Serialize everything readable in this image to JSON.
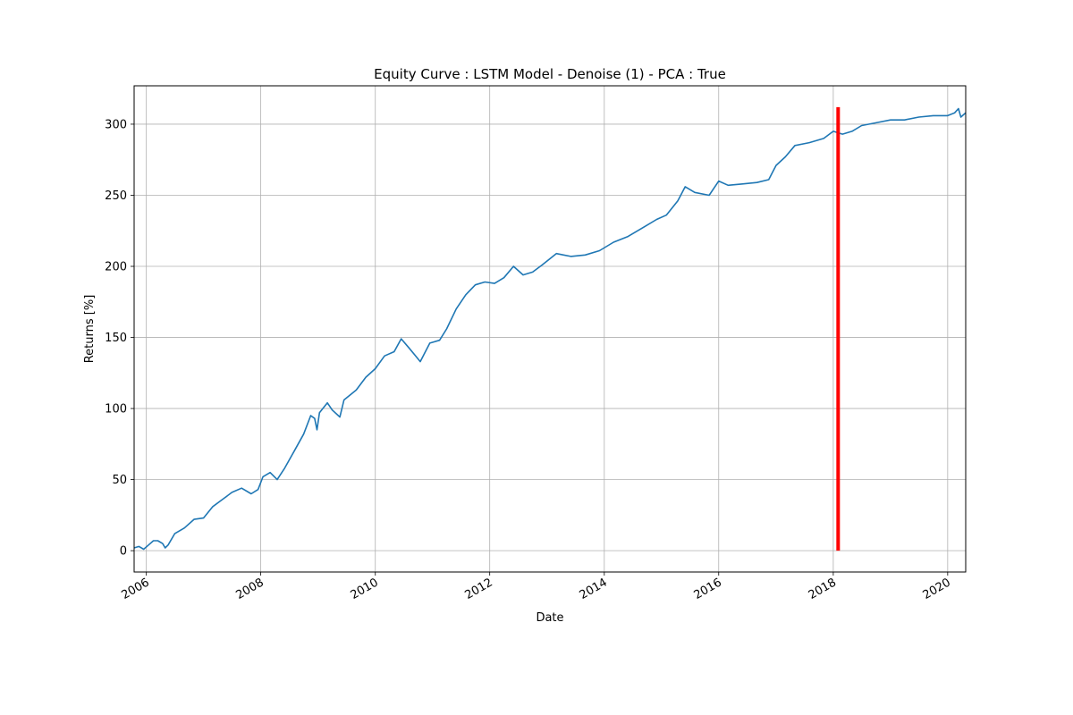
{
  "chart_data": {
    "type": "line",
    "title": "Equity Curve : LSTM Model - Denoise (1) - PCA : True",
    "xlabel": "Date",
    "ylabel": "Returns [%]",
    "xlim": [
      "2005-10-15",
      "2020-04-25"
    ],
    "ylim": [
      -15,
      327
    ],
    "x_ticks": [
      "2006",
      "2008",
      "2010",
      "2012",
      "2014",
      "2016",
      "2018",
      "2020"
    ],
    "y_ticks": [
      0,
      50,
      100,
      150,
      200,
      250,
      300
    ],
    "grid": true,
    "series": [
      {
        "color": "#1f77b4",
        "points": [
          [
            "2005-10-15",
            2
          ],
          [
            "2005-11-15",
            3
          ],
          [
            "2005-12-15",
            1
          ],
          [
            "2006-01-15",
            4
          ],
          [
            "2006-02-15",
            7
          ],
          [
            "2006-03-15",
            7
          ],
          [
            "2006-04-15",
            5
          ],
          [
            "2006-05-01",
            2
          ],
          [
            "2006-05-20",
            4
          ],
          [
            "2006-07-01",
            12
          ],
          [
            "2006-09-01",
            16
          ],
          [
            "2006-11-01",
            22
          ],
          [
            "2007-01-01",
            23
          ],
          [
            "2007-03-01",
            31
          ],
          [
            "2007-05-01",
            36
          ],
          [
            "2007-07-01",
            41
          ],
          [
            "2007-09-01",
            44
          ],
          [
            "2007-11-01",
            40
          ],
          [
            "2007-12-15",
            43
          ],
          [
            "2008-01-15",
            52
          ],
          [
            "2008-03-01",
            55
          ],
          [
            "2008-04-15",
            50
          ],
          [
            "2008-06-01",
            58
          ],
          [
            "2008-08-01",
            70
          ],
          [
            "2008-10-01",
            82
          ],
          [
            "2008-11-15",
            95
          ],
          [
            "2008-12-10",
            93
          ],
          [
            "2008-12-25",
            85
          ],
          [
            "2009-01-10",
            97
          ],
          [
            "2009-03-01",
            104
          ],
          [
            "2009-04-01",
            99
          ],
          [
            "2009-05-20",
            94
          ],
          [
            "2009-06-15",
            106
          ],
          [
            "2009-09-01",
            113
          ],
          [
            "2009-11-01",
            122
          ],
          [
            "2010-01-01",
            128
          ],
          [
            "2010-03-01",
            137
          ],
          [
            "2010-05-01",
            140
          ],
          [
            "2010-06-15",
            149
          ],
          [
            "2010-08-01",
            143
          ],
          [
            "2010-09-15",
            137
          ],
          [
            "2010-10-15",
            133
          ],
          [
            "2010-12-15",
            146
          ],
          [
            "2011-02-15",
            148
          ],
          [
            "2011-04-01",
            156
          ],
          [
            "2011-06-01",
            170
          ],
          [
            "2011-08-01",
            180
          ],
          [
            "2011-10-01",
            187
          ],
          [
            "2011-12-01",
            189
          ],
          [
            "2012-02-01",
            188
          ],
          [
            "2012-04-01",
            192
          ],
          [
            "2012-06-01",
            200
          ],
          [
            "2012-08-01",
            194
          ],
          [
            "2012-10-01",
            196
          ],
          [
            "2012-12-01",
            201
          ],
          [
            "2013-03-01",
            209
          ],
          [
            "2013-06-01",
            207
          ],
          [
            "2013-09-01",
            208
          ],
          [
            "2013-12-01",
            211
          ],
          [
            "2014-03-01",
            217
          ],
          [
            "2014-06-01",
            221
          ],
          [
            "2014-09-01",
            227
          ],
          [
            "2014-12-01",
            233
          ],
          [
            "2015-02-01",
            236
          ],
          [
            "2015-04-15",
            246
          ],
          [
            "2015-06-01",
            256
          ],
          [
            "2015-08-01",
            252
          ],
          [
            "2015-11-01",
            250
          ],
          [
            "2016-01-01",
            260
          ],
          [
            "2016-03-01",
            257
          ],
          [
            "2016-06-01",
            258
          ],
          [
            "2016-09-01",
            259
          ],
          [
            "2016-11-15",
            261
          ],
          [
            "2017-01-01",
            271
          ],
          [
            "2017-03-01",
            277
          ],
          [
            "2017-05-01",
            285
          ],
          [
            "2017-08-01",
            287
          ],
          [
            "2017-11-01",
            290
          ],
          [
            "2018-01-01",
            295
          ],
          [
            "2018-03-01",
            293
          ],
          [
            "2018-05-01",
            295
          ],
          [
            "2018-07-01",
            299
          ],
          [
            "2018-10-01",
            301
          ],
          [
            "2019-01-01",
            303
          ],
          [
            "2019-04-01",
            303
          ],
          [
            "2019-07-01",
            305
          ],
          [
            "2019-10-01",
            306
          ],
          [
            "2020-01-01",
            306
          ],
          [
            "2020-02-15",
            308
          ],
          [
            "2020-03-10",
            311
          ],
          [
            "2020-03-25",
            305
          ],
          [
            "2020-04-25",
            308
          ]
        ]
      }
    ],
    "markers": [
      {
        "date": "2018-02-01",
        "y0": 0,
        "y1": 312,
        "color": "#ff0000"
      }
    ]
  }
}
